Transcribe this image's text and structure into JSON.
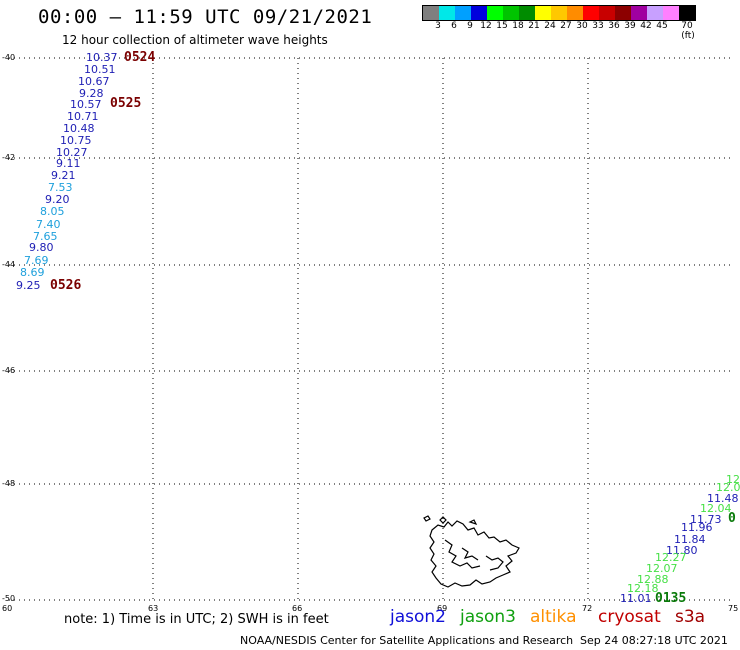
{
  "header": {
    "title": "00:00 – 11:59 UTC 09/21/2021",
    "subtitle": "12 hour collection of altimeter wave heights"
  },
  "legend": {
    "colors": [
      "#7f7f7f",
      "#00e8e8",
      "#00a0ff",
      "#0000dd",
      "#00ff00",
      "#00c400",
      "#008c00",
      "#ffff00",
      "#ffc800",
      "#ff8c00",
      "#ff0000",
      "#c80000",
      "#8c0000",
      "#a000a0",
      "#c8a0ff",
      "#ff80ff",
      "#000000"
    ],
    "labels": [
      "3",
      "6",
      "9",
      "12",
      "15",
      "18",
      "21",
      "24",
      "27",
      "30",
      "33",
      "36",
      "39",
      "42",
      "45",
      "70 (ft)"
    ]
  },
  "axes": {
    "lat_labels": [
      "-40",
      "-42",
      "-44",
      "-46",
      "-48",
      "-50"
    ],
    "lon_labels": [
      "60",
      "63",
      "66",
      "69",
      "72",
      "75"
    ]
  },
  "observations_west": [
    {
      "v": "10.37",
      "c": "#1e1eb4"
    },
    {
      "v": "10.51",
      "c": "#1e1eb4"
    },
    {
      "v": "10.67",
      "c": "#1e1eb4"
    },
    {
      "v": "9.28",
      "c": "#1e1eb4"
    },
    {
      "v": "10.57",
      "c": "#1e1eb4"
    },
    {
      "v": "10.71",
      "c": "#1e1eb4"
    },
    {
      "v": "10.48",
      "c": "#1e1eb4"
    },
    {
      "v": "10.75",
      "c": "#1e1eb4"
    },
    {
      "v": "10.27",
      "c": "#1e1eb4"
    },
    {
      "v": "9.11",
      "c": "#1e1eb4"
    },
    {
      "v": "9.21",
      "c": "#1e1eb4"
    },
    {
      "v": "7.53",
      "c": "#1ea0dc"
    },
    {
      "v": "9.20",
      "c": "#1e1eb4"
    },
    {
      "v": "8.05",
      "c": "#1ea0dc"
    },
    {
      "v": "7.40",
      "c": "#1ea0dc"
    },
    {
      "v": "7.65",
      "c": "#1ea0dc"
    },
    {
      "v": "9.80",
      "c": "#1e1eb4"
    },
    {
      "v": "7.69",
      "c": "#1ea0dc"
    },
    {
      "v": "8.69",
      "c": "#1ea0dc"
    },
    {
      "v": "9.25",
      "c": "#1e1eb4"
    }
  ],
  "observations_east": [
    {
      "v": "12.",
      "c": "#46e046"
    },
    {
      "v": "12.0",
      "c": "#46e046"
    },
    {
      "v": "11.48",
      "c": "#1e1eb4"
    },
    {
      "v": "12.04",
      "c": "#46e046"
    },
    {
      "v": "11.73",
      "c": "#1e1eb4"
    },
    {
      "v": "11.96",
      "c": "#1e1eb4"
    },
    {
      "v": "11.84",
      "c": "#1e1eb4"
    },
    {
      "v": "11.80",
      "c": "#1e1eb4"
    },
    {
      "v": "12.27",
      "c": "#46e046"
    },
    {
      "v": "12.07",
      "c": "#46e046"
    },
    {
      "v": "12.88",
      "c": "#46e046"
    },
    {
      "v": "12.18",
      "c": "#46e046"
    },
    {
      "v": "11.01",
      "c": "#1e1eb4"
    }
  ],
  "pass_times": {
    "p1": "0524",
    "p2": "0525",
    "p3": "0526",
    "p4": "0",
    "p5": "0135"
  },
  "note": "note: 1) Time is in UTC; 2) SWH is in feet",
  "satellites": [
    {
      "name": "jason2",
      "color": "#1010d8"
    },
    {
      "name": "jason3",
      "color": "#10a010"
    },
    {
      "name": "altika",
      "color": "#ff9000"
    },
    {
      "name": "cryosat",
      "color": "#c00000"
    },
    {
      "name": "s3a",
      "color": "#a00000"
    }
  ],
  "footer": {
    "left": "NOAA/NESDIS Center for Satellite Applications and Research",
    "right": "Sep 24 08:27:18 UTC 2021"
  }
}
